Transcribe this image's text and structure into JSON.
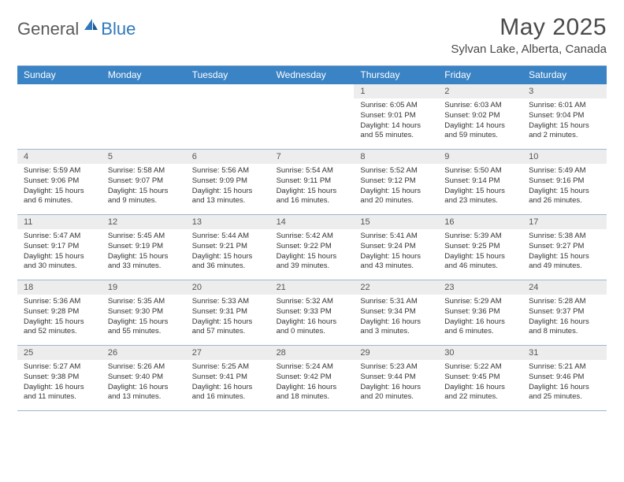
{
  "brand": {
    "part1": "General",
    "part2": "Blue"
  },
  "title": "May 2025",
  "location": "Sylvan Lake, Alberta, Canada",
  "colors": {
    "header_bg": "#3a83c5",
    "header_text": "#ffffff",
    "daynum_bg": "#ededed",
    "row_border": "#9fb7cf",
    "body_text": "#333333",
    "brand_gray": "#5a5a5a",
    "brand_blue": "#2f78bd"
  },
  "weekdays": [
    "Sunday",
    "Monday",
    "Tuesday",
    "Wednesday",
    "Thursday",
    "Friday",
    "Saturday"
  ],
  "layout": {
    "columns": 7,
    "rows": 5,
    "first_day_column_index": 4
  },
  "weeks": [
    [
      {
        "empty": true
      },
      {
        "empty": true
      },
      {
        "empty": true
      },
      {
        "empty": true
      },
      {
        "day": "1",
        "sunrise": "Sunrise: 6:05 AM",
        "sunset": "Sunset: 9:01 PM",
        "daylight": "Daylight: 14 hours and 55 minutes."
      },
      {
        "day": "2",
        "sunrise": "Sunrise: 6:03 AM",
        "sunset": "Sunset: 9:02 PM",
        "daylight": "Daylight: 14 hours and 59 minutes."
      },
      {
        "day": "3",
        "sunrise": "Sunrise: 6:01 AM",
        "sunset": "Sunset: 9:04 PM",
        "daylight": "Daylight: 15 hours and 2 minutes."
      }
    ],
    [
      {
        "day": "4",
        "sunrise": "Sunrise: 5:59 AM",
        "sunset": "Sunset: 9:06 PM",
        "daylight": "Daylight: 15 hours and 6 minutes."
      },
      {
        "day": "5",
        "sunrise": "Sunrise: 5:58 AM",
        "sunset": "Sunset: 9:07 PM",
        "daylight": "Daylight: 15 hours and 9 minutes."
      },
      {
        "day": "6",
        "sunrise": "Sunrise: 5:56 AM",
        "sunset": "Sunset: 9:09 PM",
        "daylight": "Daylight: 15 hours and 13 minutes."
      },
      {
        "day": "7",
        "sunrise": "Sunrise: 5:54 AM",
        "sunset": "Sunset: 9:11 PM",
        "daylight": "Daylight: 15 hours and 16 minutes."
      },
      {
        "day": "8",
        "sunrise": "Sunrise: 5:52 AM",
        "sunset": "Sunset: 9:12 PM",
        "daylight": "Daylight: 15 hours and 20 minutes."
      },
      {
        "day": "9",
        "sunrise": "Sunrise: 5:50 AM",
        "sunset": "Sunset: 9:14 PM",
        "daylight": "Daylight: 15 hours and 23 minutes."
      },
      {
        "day": "10",
        "sunrise": "Sunrise: 5:49 AM",
        "sunset": "Sunset: 9:16 PM",
        "daylight": "Daylight: 15 hours and 26 minutes."
      }
    ],
    [
      {
        "day": "11",
        "sunrise": "Sunrise: 5:47 AM",
        "sunset": "Sunset: 9:17 PM",
        "daylight": "Daylight: 15 hours and 30 minutes."
      },
      {
        "day": "12",
        "sunrise": "Sunrise: 5:45 AM",
        "sunset": "Sunset: 9:19 PM",
        "daylight": "Daylight: 15 hours and 33 minutes."
      },
      {
        "day": "13",
        "sunrise": "Sunrise: 5:44 AM",
        "sunset": "Sunset: 9:21 PM",
        "daylight": "Daylight: 15 hours and 36 minutes."
      },
      {
        "day": "14",
        "sunrise": "Sunrise: 5:42 AM",
        "sunset": "Sunset: 9:22 PM",
        "daylight": "Daylight: 15 hours and 39 minutes."
      },
      {
        "day": "15",
        "sunrise": "Sunrise: 5:41 AM",
        "sunset": "Sunset: 9:24 PM",
        "daylight": "Daylight: 15 hours and 43 minutes."
      },
      {
        "day": "16",
        "sunrise": "Sunrise: 5:39 AM",
        "sunset": "Sunset: 9:25 PM",
        "daylight": "Daylight: 15 hours and 46 minutes."
      },
      {
        "day": "17",
        "sunrise": "Sunrise: 5:38 AM",
        "sunset": "Sunset: 9:27 PM",
        "daylight": "Daylight: 15 hours and 49 minutes."
      }
    ],
    [
      {
        "day": "18",
        "sunrise": "Sunrise: 5:36 AM",
        "sunset": "Sunset: 9:28 PM",
        "daylight": "Daylight: 15 hours and 52 minutes."
      },
      {
        "day": "19",
        "sunrise": "Sunrise: 5:35 AM",
        "sunset": "Sunset: 9:30 PM",
        "daylight": "Daylight: 15 hours and 55 minutes."
      },
      {
        "day": "20",
        "sunrise": "Sunrise: 5:33 AM",
        "sunset": "Sunset: 9:31 PM",
        "daylight": "Daylight: 15 hours and 57 minutes."
      },
      {
        "day": "21",
        "sunrise": "Sunrise: 5:32 AM",
        "sunset": "Sunset: 9:33 PM",
        "daylight": "Daylight: 16 hours and 0 minutes."
      },
      {
        "day": "22",
        "sunrise": "Sunrise: 5:31 AM",
        "sunset": "Sunset: 9:34 PM",
        "daylight": "Daylight: 16 hours and 3 minutes."
      },
      {
        "day": "23",
        "sunrise": "Sunrise: 5:29 AM",
        "sunset": "Sunset: 9:36 PM",
        "daylight": "Daylight: 16 hours and 6 minutes."
      },
      {
        "day": "24",
        "sunrise": "Sunrise: 5:28 AM",
        "sunset": "Sunset: 9:37 PM",
        "daylight": "Daylight: 16 hours and 8 minutes."
      }
    ],
    [
      {
        "day": "25",
        "sunrise": "Sunrise: 5:27 AM",
        "sunset": "Sunset: 9:38 PM",
        "daylight": "Daylight: 16 hours and 11 minutes."
      },
      {
        "day": "26",
        "sunrise": "Sunrise: 5:26 AM",
        "sunset": "Sunset: 9:40 PM",
        "daylight": "Daylight: 16 hours and 13 minutes."
      },
      {
        "day": "27",
        "sunrise": "Sunrise: 5:25 AM",
        "sunset": "Sunset: 9:41 PM",
        "daylight": "Daylight: 16 hours and 16 minutes."
      },
      {
        "day": "28",
        "sunrise": "Sunrise: 5:24 AM",
        "sunset": "Sunset: 9:42 PM",
        "daylight": "Daylight: 16 hours and 18 minutes."
      },
      {
        "day": "29",
        "sunrise": "Sunrise: 5:23 AM",
        "sunset": "Sunset: 9:44 PM",
        "daylight": "Daylight: 16 hours and 20 minutes."
      },
      {
        "day": "30",
        "sunrise": "Sunrise: 5:22 AM",
        "sunset": "Sunset: 9:45 PM",
        "daylight": "Daylight: 16 hours and 22 minutes."
      },
      {
        "day": "31",
        "sunrise": "Sunrise: 5:21 AM",
        "sunset": "Sunset: 9:46 PM",
        "daylight": "Daylight: 16 hours and 25 minutes."
      }
    ]
  ]
}
